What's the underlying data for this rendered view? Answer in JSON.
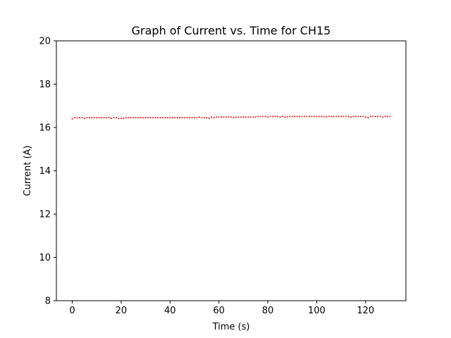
{
  "chart_data": {
    "type": "scatter",
    "title": "Graph of Current vs. Time for CH15",
    "xlabel": "Time (s)",
    "ylabel": "Current (A)",
    "xlim": [
      -6.5,
      136.5
    ],
    "ylim": [
      8,
      20
    ],
    "xticks": [
      0,
      20,
      40,
      60,
      80,
      100,
      120
    ],
    "yticks": [
      8,
      10,
      12,
      14,
      16,
      18,
      20
    ],
    "grid": false,
    "marker_color": "#ff0000",
    "series": [
      {
        "x": [
          0,
          1,
          2,
          3,
          4,
          5,
          6,
          7,
          8,
          9,
          10,
          11,
          12,
          13,
          14,
          15,
          16,
          17,
          18,
          19,
          20,
          21,
          22,
          23,
          24,
          25,
          26,
          27,
          28,
          29,
          30,
          31,
          32,
          33,
          34,
          35,
          36,
          37,
          38,
          39,
          40,
          41,
          42,
          43,
          44,
          45,
          46,
          47,
          48,
          49,
          50,
          51,
          52,
          53,
          54,
          55,
          56,
          57,
          58,
          59,
          60,
          61,
          62,
          63,
          64,
          65,
          66,
          67,
          68,
          69,
          70,
          71,
          72,
          73,
          74,
          75,
          76,
          77,
          78,
          79,
          80,
          81,
          82,
          83,
          84,
          85,
          86,
          87,
          88,
          89,
          90,
          91,
          92,
          93,
          94,
          95,
          96,
          97,
          98,
          99,
          100,
          101,
          102,
          103,
          104,
          105,
          106,
          107,
          108,
          109,
          110,
          111,
          112,
          113,
          114,
          115,
          116,
          117,
          118,
          119,
          120,
          121,
          122,
          123,
          124,
          125,
          126,
          127,
          128,
          129,
          130
        ],
        "y": [
          16.4,
          16.45,
          16.45,
          16.45,
          16.45,
          16.42,
          16.45,
          16.45,
          16.45,
          16.45,
          16.45,
          16.45,
          16.45,
          16.45,
          16.45,
          16.45,
          16.42,
          16.45,
          16.45,
          16.42,
          16.42,
          16.42,
          16.45,
          16.45,
          16.45,
          16.45,
          16.45,
          16.45,
          16.45,
          16.45,
          16.45,
          16.45,
          16.45,
          16.45,
          16.45,
          16.45,
          16.45,
          16.45,
          16.45,
          16.45,
          16.45,
          16.45,
          16.45,
          16.45,
          16.45,
          16.45,
          16.45,
          16.45,
          16.45,
          16.45,
          16.45,
          16.45,
          16.48,
          16.45,
          16.45,
          16.45,
          16.42,
          16.48,
          16.45,
          16.48,
          16.48,
          16.48,
          16.48,
          16.48,
          16.48,
          16.48,
          16.45,
          16.48,
          16.48,
          16.48,
          16.48,
          16.48,
          16.48,
          16.48,
          16.48,
          16.48,
          16.51,
          16.51,
          16.51,
          16.51,
          16.48,
          16.51,
          16.51,
          16.51,
          16.51,
          16.48,
          16.51,
          16.48,
          16.48,
          16.51,
          16.51,
          16.51,
          16.51,
          16.51,
          16.51,
          16.51,
          16.51,
          16.51,
          16.51,
          16.51,
          16.51,
          16.51,
          16.51,
          16.51,
          16.48,
          16.51,
          16.51,
          16.51,
          16.51,
          16.51,
          16.51,
          16.51,
          16.51,
          16.51,
          16.48,
          16.51,
          16.51,
          16.51,
          16.51,
          16.51,
          16.48,
          16.45,
          16.51,
          16.51,
          16.51,
          16.51,
          16.51,
          16.48,
          16.51,
          16.51,
          16.51
        ]
      }
    ]
  }
}
